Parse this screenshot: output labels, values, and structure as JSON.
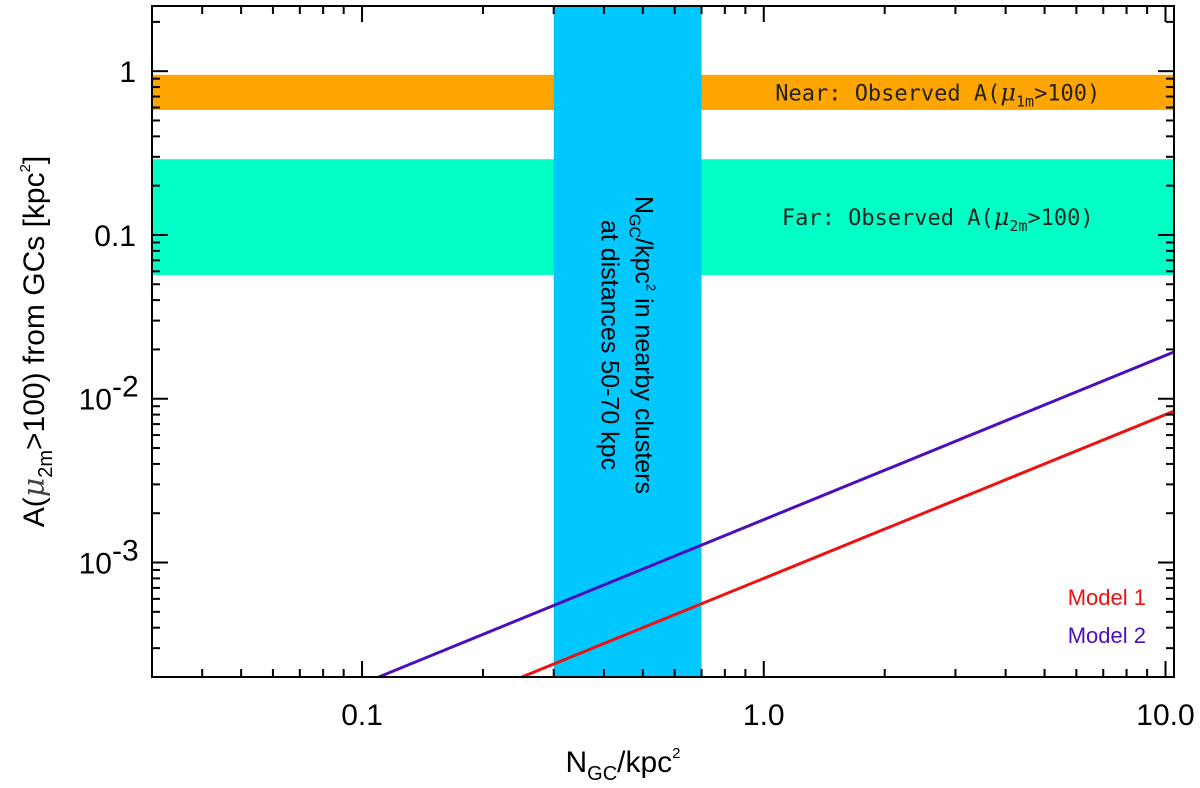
{
  "chart_data": {
    "type": "line",
    "xlabel": {
      "main": "N",
      "sub": "GC",
      "tail": "/kpc",
      "sup": "2"
    },
    "ylabel": {
      "pre": "A(",
      "mu": "μ",
      "sub": "2m",
      "mid": ">100) from GCs [kpc",
      "sup": "2",
      "post": "]"
    },
    "x_scale": "log",
    "y_scale": "log",
    "xlim": [
      0.03,
      10.5
    ],
    "ylim": [
      0.0002,
      2.5
    ],
    "x_ticks": [
      {
        "value": 0.1,
        "label": "0.1"
      },
      {
        "value": 1.0,
        "label": "1.0"
      },
      {
        "value": 10.0,
        "label": "10.0"
      }
    ],
    "y_ticks": [
      {
        "value": 1,
        "label": "1",
        "sup": ""
      },
      {
        "value": 0.1,
        "label": "0.1",
        "sup": ""
      },
      {
        "value": 0.01,
        "label": "10",
        "sup": "-2"
      },
      {
        "value": 0.001,
        "label": "10",
        "sup": "-3"
      }
    ],
    "bands": [
      {
        "orientation": "horizontal",
        "y_range": [
          0.58,
          0.95
        ],
        "color": "#ffa500",
        "label": {
          "pre": "Near: Observed A(",
          "mu": "μ",
          "sub": "1m",
          "post": ">100)"
        },
        "label_color": "#222222"
      },
      {
        "orientation": "horizontal",
        "y_range": [
          0.057,
          0.29
        ],
        "color": "#00ffc5",
        "label": {
          "pre": "Far: Observed A(",
          "mu": "μ",
          "sub": "2m",
          "post": ">100)"
        },
        "label_color": "#222222"
      },
      {
        "orientation": "vertical",
        "x_range": [
          0.3,
          0.7
        ],
        "color": "#00c8ff",
        "label_line1": {
          "pre": "N",
          "sub": "GC",
          "mid": "/kpc",
          "sup": "2",
          "post": " in nearby clusters"
        },
        "label_line2": "at distances 50-70 kpc"
      }
    ],
    "series": [
      {
        "name": "Model 1",
        "color": "#ee1111",
        "x": [
          0.25,
          10.5
        ],
        "y": [
          0.0002,
          0.0084
        ]
      },
      {
        "name": "Model 2",
        "color": "#4b0fbe",
        "x": [
          0.11,
          10.5
        ],
        "y": [
          0.0002,
          0.0193
        ]
      }
    ],
    "legend": {
      "position": "bottom-right"
    },
    "grid": false
  }
}
